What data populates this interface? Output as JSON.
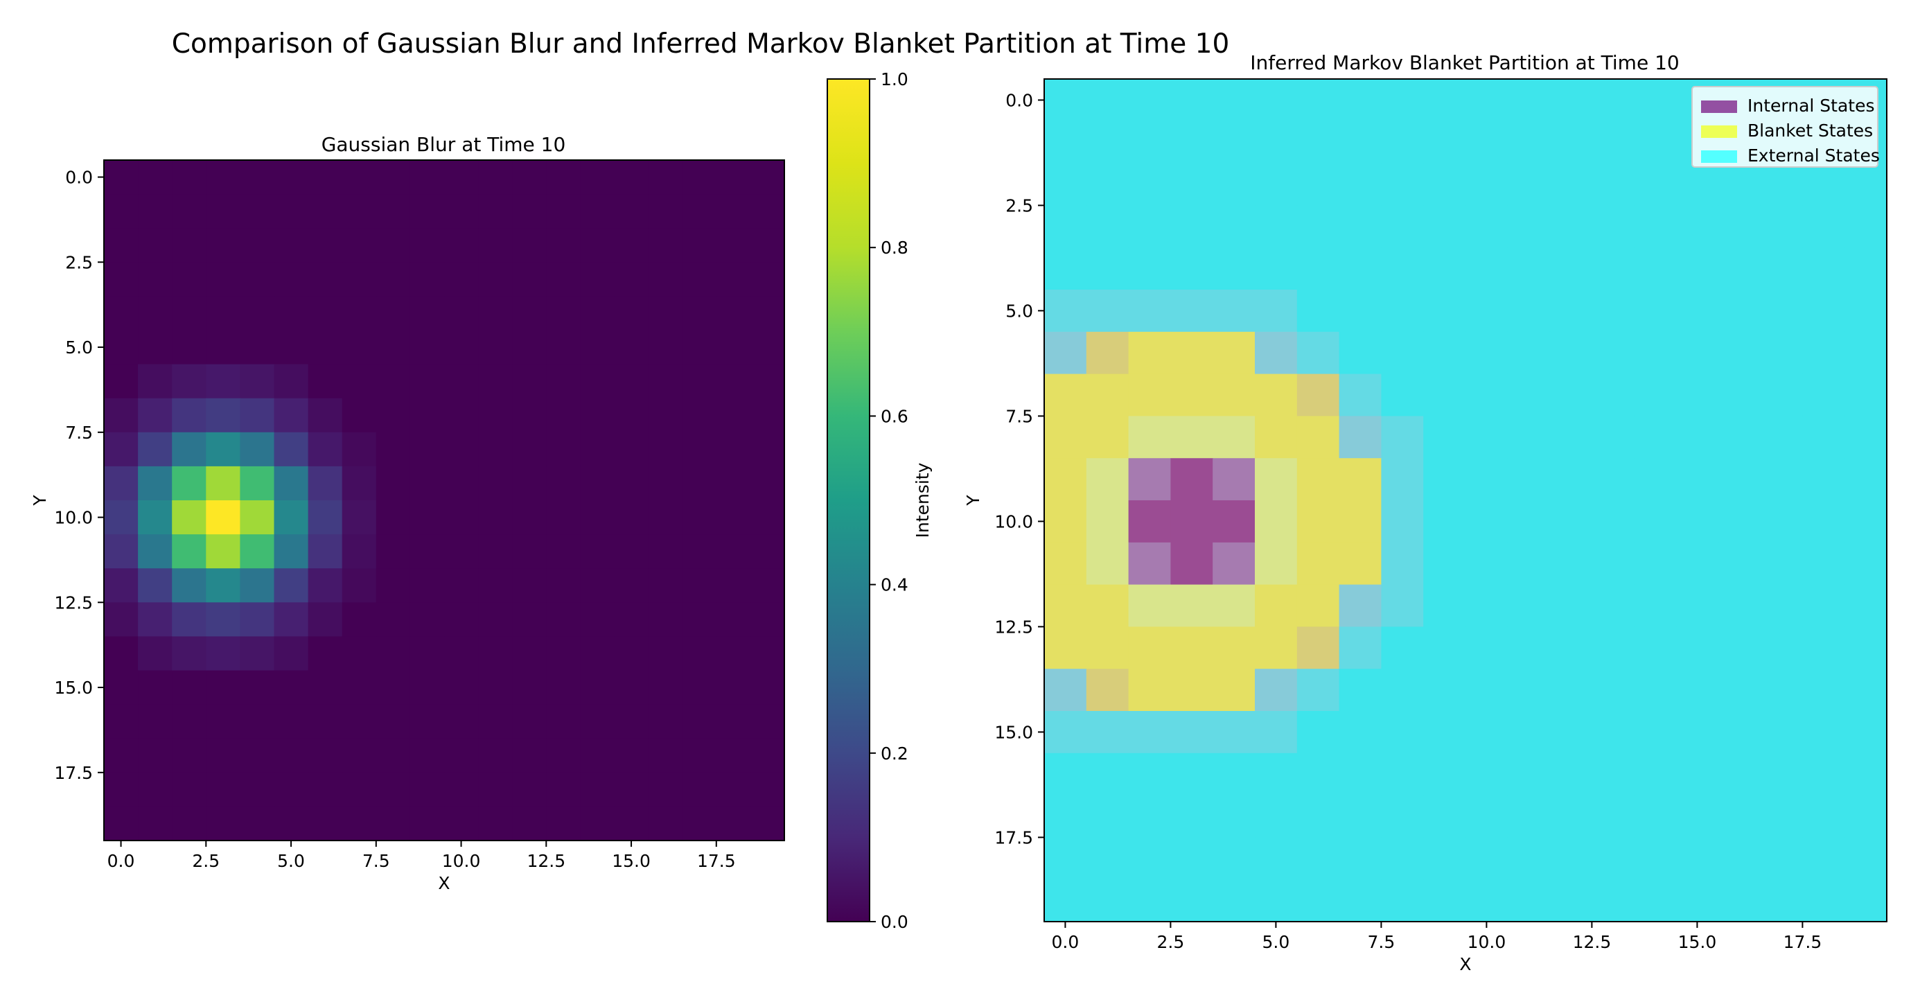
{
  "figure": {
    "title": "Comparison of Gaussian Blur and Inferred Markov Blanket Partition at Time 10"
  },
  "chart_data": [
    {
      "type": "heatmap",
      "title": "Gaussian Blur at Time 10",
      "xlabel": "X",
      "ylabel": "Y",
      "grid": false,
      "colormap": "viridis",
      "colorbar": {
        "label": "Intensity",
        "range": [
          0,
          1
        ],
        "ticks": [
          "0.0",
          "0.2",
          "0.4",
          "0.6",
          "0.8",
          "1.0"
        ]
      },
      "xlim": [
        -0.5,
        19.5
      ],
      "ylim": [
        19.5,
        -0.5
      ],
      "xticks": [
        "0.0",
        "2.5",
        "5.0",
        "7.5",
        "10.0",
        "12.5",
        "15.0",
        "17.5"
      ],
      "yticks": [
        "0.0",
        "2.5",
        "5.0",
        "7.5",
        "10.0",
        "12.5",
        "15.0",
        "17.5"
      ],
      "grid_size": [
        20,
        20
      ],
      "peak": {
        "x": 3,
        "y": 10,
        "value": 1.0
      },
      "nonzero_values": [
        {
          "row": 6,
          "cols": [
            1,
            2,
            3,
            4,
            5
          ],
          "values": [
            0.03,
            0.05,
            0.06,
            0.05,
            0.03
          ]
        },
        {
          "row": 7,
          "cols": [
            0,
            1,
            2,
            3,
            4,
            5,
            6
          ],
          "values": [
            0.03,
            0.08,
            0.14,
            0.16,
            0.14,
            0.08,
            0.03
          ]
        },
        {
          "row": 8,
          "cols": [
            0,
            1,
            2,
            3,
            4,
            5,
            6,
            7
          ],
          "values": [
            0.06,
            0.17,
            0.35,
            0.42,
            0.35,
            0.17,
            0.06,
            0.02
          ]
        },
        {
          "row": 9,
          "cols": [
            0,
            1,
            2,
            3,
            4,
            5,
            6,
            7
          ],
          "values": [
            0.13,
            0.36,
            0.62,
            0.77,
            0.62,
            0.36,
            0.13,
            0.03
          ]
        },
        {
          "row": 10,
          "cols": [
            0,
            1,
            2,
            3,
            4,
            5,
            6,
            7
          ],
          "values": [
            0.16,
            0.42,
            0.77,
            1.0,
            0.77,
            0.42,
            0.16,
            0.04
          ]
        },
        {
          "row": 11,
          "cols": [
            0,
            1,
            2,
            3,
            4,
            5,
            6,
            7
          ],
          "values": [
            0.13,
            0.36,
            0.62,
            0.77,
            0.62,
            0.36,
            0.13,
            0.03
          ]
        },
        {
          "row": 12,
          "cols": [
            0,
            1,
            2,
            3,
            4,
            5,
            6,
            7
          ],
          "values": [
            0.06,
            0.17,
            0.35,
            0.42,
            0.35,
            0.17,
            0.06,
            0.02
          ]
        },
        {
          "row": 13,
          "cols": [
            0,
            1,
            2,
            3,
            4,
            5,
            6
          ],
          "values": [
            0.03,
            0.08,
            0.14,
            0.16,
            0.14,
            0.08,
            0.03
          ]
        },
        {
          "row": 14,
          "cols": [
            1,
            2,
            3,
            4,
            5
          ],
          "values": [
            0.03,
            0.05,
            0.06,
            0.05,
            0.03
          ]
        }
      ]
    },
    {
      "type": "heatmap",
      "title": "Inferred Markov Blanket Partition at Time 10",
      "xlabel": "X",
      "ylabel": "Y",
      "grid": false,
      "xlim": [
        -0.5,
        19.5
      ],
      "ylim": [
        19.5,
        -0.5
      ],
      "xticks": [
        "0.0",
        "2.5",
        "5.0",
        "7.5",
        "10.0",
        "12.5",
        "15.0",
        "17.5"
      ],
      "yticks": [
        "0.0",
        "2.5",
        "5.0",
        "7.5",
        "10.0",
        "12.5",
        "15.0",
        "17.5"
      ],
      "grid_size": [
        20,
        20
      ],
      "legend_position": "top-right",
      "legend": [
        {
          "label": "Internal States",
          "color": "#8b3d98"
        },
        {
          "label": "Blanket States",
          "color": "#eeff44"
        },
        {
          "label": "External States",
          "color": "#44ffff"
        }
      ],
      "colors": {
        "external": "#3ee5eb",
        "blanket": "#e4e063",
        "blanket_light": "#d9e58c",
        "internal": "#a67bb0",
        "internal_dark": "#9b4c93",
        "mix_light": "#64dae4",
        "mix_mid": "#87cbd9",
        "mix_tan": "#d8cd7a"
      },
      "partition_rows": [
        {
          "row": 5,
          "values": [
            "mix_light",
            "mix_light",
            "mix_light",
            "mix_light",
            "mix_light",
            "mix_light"
          ]
        },
        {
          "row": 6,
          "values": [
            "mix_mid",
            "mix_tan",
            "blanket",
            "blanket",
            "blanket",
            "mix_mid",
            "mix_light"
          ]
        },
        {
          "row": 7,
          "values": [
            "blanket",
            "blanket",
            "blanket",
            "blanket",
            "blanket",
            "blanket",
            "mix_tan",
            "mix_light"
          ]
        },
        {
          "row": 8,
          "values": [
            "blanket",
            "blanket",
            "blanket_light",
            "blanket_light",
            "blanket_light",
            "blanket",
            "blanket",
            "mix_mid",
            "mix_light"
          ]
        },
        {
          "row": 9,
          "values": [
            "blanket",
            "blanket_light",
            "internal",
            "internal_dark",
            "internal",
            "blanket_light",
            "blanket",
            "blanket",
            "mix_light"
          ]
        },
        {
          "row": 10,
          "values": [
            "blanket",
            "blanket_light",
            "internal_dark",
            "internal_dark",
            "internal_dark",
            "blanket_light",
            "blanket",
            "blanket",
            "mix_light"
          ]
        },
        {
          "row": 11,
          "values": [
            "blanket",
            "blanket_light",
            "internal",
            "internal_dark",
            "internal",
            "blanket_light",
            "blanket",
            "blanket",
            "mix_light"
          ]
        },
        {
          "row": 12,
          "values": [
            "blanket",
            "blanket",
            "blanket_light",
            "blanket_light",
            "blanket_light",
            "blanket",
            "blanket",
            "mix_mid",
            "mix_light"
          ]
        },
        {
          "row": 13,
          "values": [
            "blanket",
            "blanket",
            "blanket",
            "blanket",
            "blanket",
            "blanket",
            "mix_tan",
            "mix_light"
          ]
        },
        {
          "row": 14,
          "values": [
            "mix_mid",
            "mix_tan",
            "blanket",
            "blanket",
            "blanket",
            "mix_mid",
            "mix_light"
          ]
        },
        {
          "row": 15,
          "values": [
            "mix_light",
            "mix_light",
            "mix_light",
            "mix_light",
            "mix_light",
            "mix_light"
          ]
        }
      ]
    }
  ]
}
